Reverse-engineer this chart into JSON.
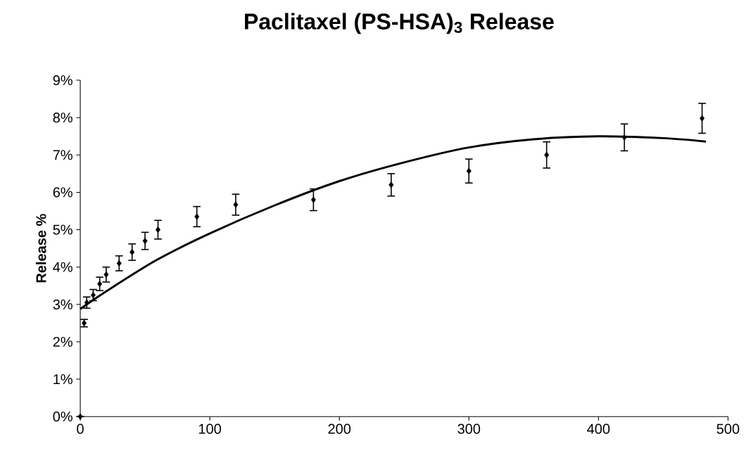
{
  "chart_data": {
    "type": "scatter",
    "title": "Paclitaxel (PS-HSA)$_{3}$ Release",
    "ylabel": "Release %",
    "xlim": [
      0,
      500
    ],
    "xticks": [
      0,
      100,
      200,
      300,
      400,
      500
    ],
    "ylim": [
      0,
      9
    ],
    "yticks": [
      {
        "value": 0,
        "label": "0%"
      },
      {
        "value": 1,
        "label": "1%"
      },
      {
        "value": 2,
        "label": "2%"
      },
      {
        "value": 3,
        "label": "3%"
      },
      {
        "value": 4,
        "label": "4%"
      },
      {
        "value": 5,
        "label": "5%"
      },
      {
        "value": 6,
        "label": "6%"
      },
      {
        "value": 7,
        "label": "7%"
      },
      {
        "value": 8,
        "label": "8%"
      },
      {
        "value": 9,
        "label": "9%"
      }
    ],
    "grid": false,
    "series": [
      {
        "color": "#000000",
        "marker": "diamond",
        "x": [
          0,
          3,
          5,
          10,
          15,
          20,
          30,
          40,
          50,
          60,
          90,
          120,
          180,
          240,
          300,
          360,
          420,
          480
        ],
        "values": [
          0,
          2.5,
          3.05,
          3.25,
          3.55,
          3.8,
          4.1,
          4.4,
          4.7,
          5.0,
          5.35,
          5.67,
          5.8,
          6.2,
          6.57,
          7.0,
          7.47,
          7.98
        ],
        "errors": [
          null,
          0.1,
          0.15,
          0.15,
          0.18,
          0.2,
          0.2,
          0.22,
          0.23,
          0.25,
          0.27,
          0.28,
          0.29,
          0.3,
          0.32,
          0.35,
          0.36,
          0.4
        ]
      },
      {
        "type": "line",
        "color": "#000000",
        "marker": "none",
        "line_style": "solid",
        "x": [
          0,
          20,
          59,
          100,
          150,
          200,
          250,
          300,
          350,
          400,
          450,
          483
        ],
        "values": [
          2.88,
          3.35,
          4.19,
          4.9,
          5.65,
          6.3,
          6.8,
          7.2,
          7.42,
          7.5,
          7.45,
          7.36
        ]
      }
    ]
  }
}
